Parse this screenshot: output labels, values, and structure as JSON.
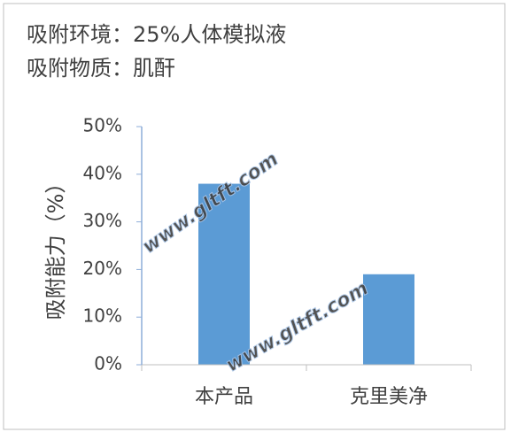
{
  "chart_data": {
    "type": "bar",
    "title": "吸附环境：25%人体模拟液",
    "subtitle": "吸附物质：肌酐",
    "y_label": "吸附能力（%）",
    "watermark": "www.gltft.com",
    "categories": [
      "本产品",
      "克里美净"
    ],
    "values": [
      38,
      19
    ],
    "color": "#5b9bd5",
    "ylim": [
      0,
      50
    ],
    "yticks": [
      {
        "value": 0,
        "label": "0%"
      },
      {
        "value": 10,
        "label": "10%"
      },
      {
        "value": 20,
        "label": "20%"
      },
      {
        "value": 30,
        "label": "30%"
      },
      {
        "value": 40,
        "label": "40%"
      },
      {
        "value": 50,
        "label": "50%"
      }
    ],
    "grid": false
  }
}
